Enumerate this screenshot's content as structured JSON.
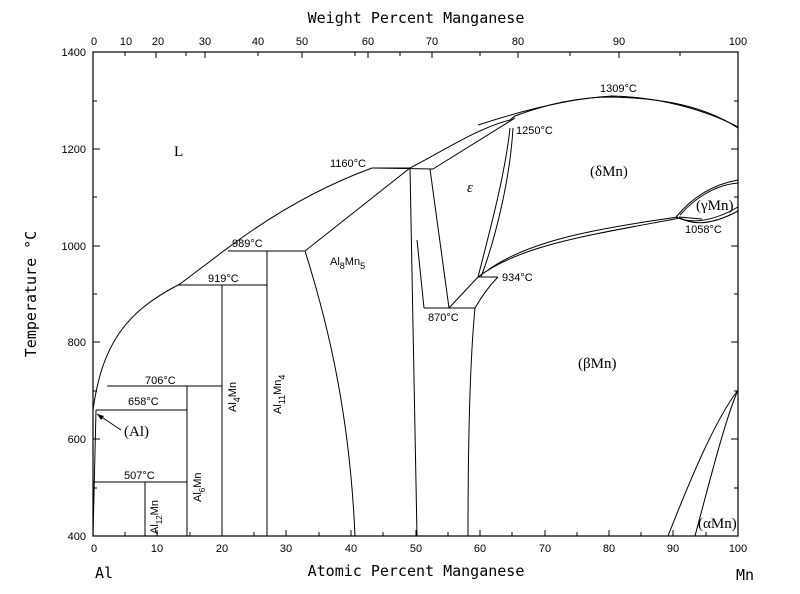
{
  "diagram": {
    "top_axis_title": "Weight Percent Manganese",
    "bottom_axis_title": "Atomic Percent Manganese",
    "left_axis_title": "Temperature °C",
    "left_end_label": "Al",
    "right_end_label": "Mn",
    "top_ticks": [
      "0",
      "10",
      "20",
      "30",
      "40",
      "50",
      "60",
      "70",
      "80",
      "90",
      "100"
    ],
    "bottom_ticks": [
      "0",
      "10",
      "20",
      "30",
      "40",
      "50",
      "60",
      "70",
      "80",
      "90",
      "100"
    ],
    "y_ticks": [
      "400",
      "600",
      "800",
      "1000",
      "1200",
      "1400"
    ],
    "temperatures": {
      "t1309": "1309°C",
      "t1250": "1250°C",
      "t1160": "1160°C",
      "t989": "989°C",
      "t919": "919°C",
      "t934": "934°C",
      "t870": "870°C",
      "t706": "706°C",
      "t658": "658°C",
      "t507": "507°C",
      "t1058": "1058°C"
    },
    "phases": {
      "liquid": "L",
      "delta_mn": "(δMn)",
      "gamma_mn": "(γMn)",
      "beta_mn": "(βMn)",
      "alpha_mn": "(αMn)",
      "al": "(Al)",
      "epsilon": "ε",
      "al8mn5_main": "Al",
      "al8mn5_sub1": "8",
      "al8mn5_mid": "Mn",
      "al8mn5_sub2": "5",
      "al4mn_main": "Al",
      "al4mn_sub": "4",
      "al4mn_tail": "Mn",
      "al11mn4_main": "Al",
      "al11mn4_sub1": "11",
      "al11mn4_mid": "Mn",
      "al11mn4_sub2": "4",
      "al6mn_main": "Al",
      "al6mn_sub": "6",
      "al6mn_tail": "Mn",
      "al12mn_main": "Al",
      "al12mn_sub": "12",
      "al12mn_tail": "Mn"
    }
  }
}
